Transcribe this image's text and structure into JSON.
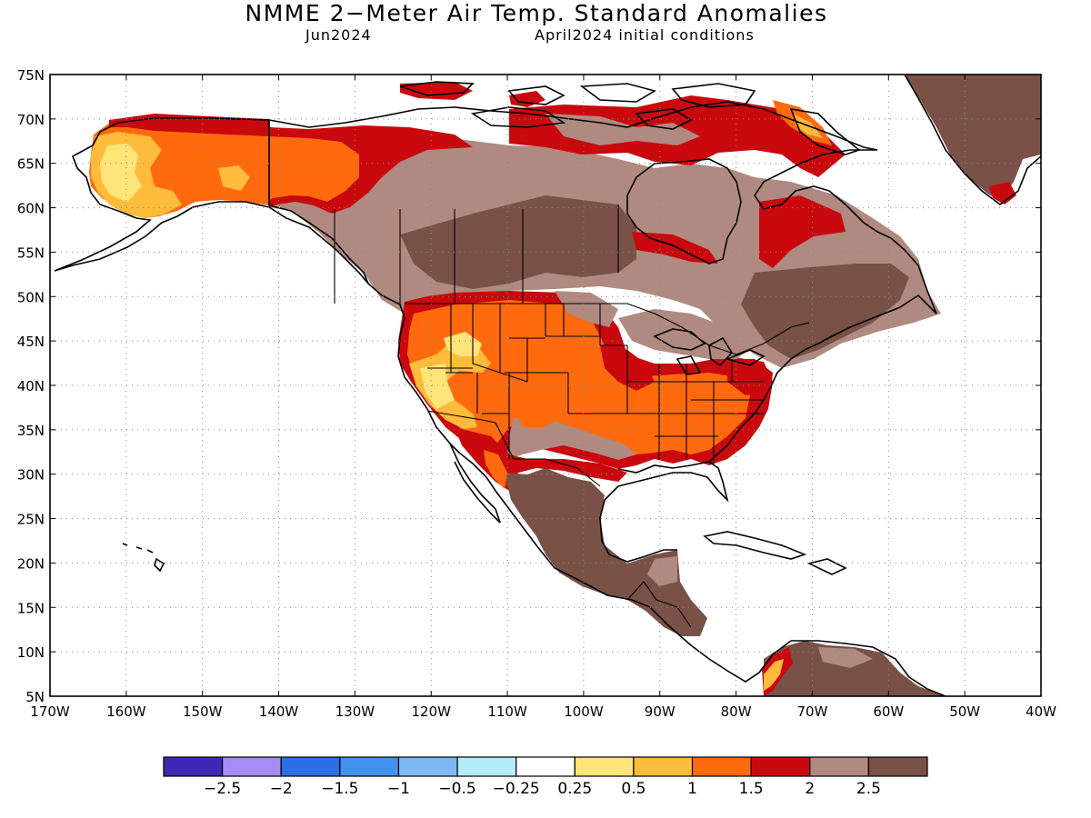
{
  "title": "NMME 2−Meter Air Temp. Standard Anomalies",
  "subtitle_left": "Jun2024",
  "subtitle_right": "April2024 initial conditions",
  "lat_labels": [
    "75N",
    "70N",
    "65N",
    "60N",
    "55N",
    "50N",
    "45N",
    "40N",
    "35N",
    "30N",
    "25N",
    "20N",
    "15N",
    "10N",
    "5N"
  ],
  "lon_labels": [
    "170W",
    "160W",
    "150W",
    "140W",
    "130W",
    "120W",
    "110W",
    "100W",
    "90W",
    "80W",
    "70W",
    "60W",
    "50W",
    "40W"
  ],
  "colorbar": {
    "colors": [
      "#3e27b3",
      "#a58cf7",
      "#2a6fe6",
      "#4193f0",
      "#7cb9f5",
      "#b4ecfa",
      "#ffffff",
      "#ffe47a",
      "#ffbb3c",
      "#ff6a0e",
      "#c9090e",
      "#b08a80",
      "#7a5147"
    ],
    "labels": [
      "−2.5",
      "−2",
      "−1.5",
      "−1",
      "−0.5",
      "−0.25",
      "0.25",
      "0.5",
      "1",
      "1.5",
      "2",
      "2.5"
    ]
  },
  "colors": {
    "c025": "#ffe47a",
    "c05": "#ffbb3c",
    "c1": "#ff6a0e",
    "c15": "#c9090e",
    "c2": "#b08a80",
    "c25": "#7a5147"
  }
}
